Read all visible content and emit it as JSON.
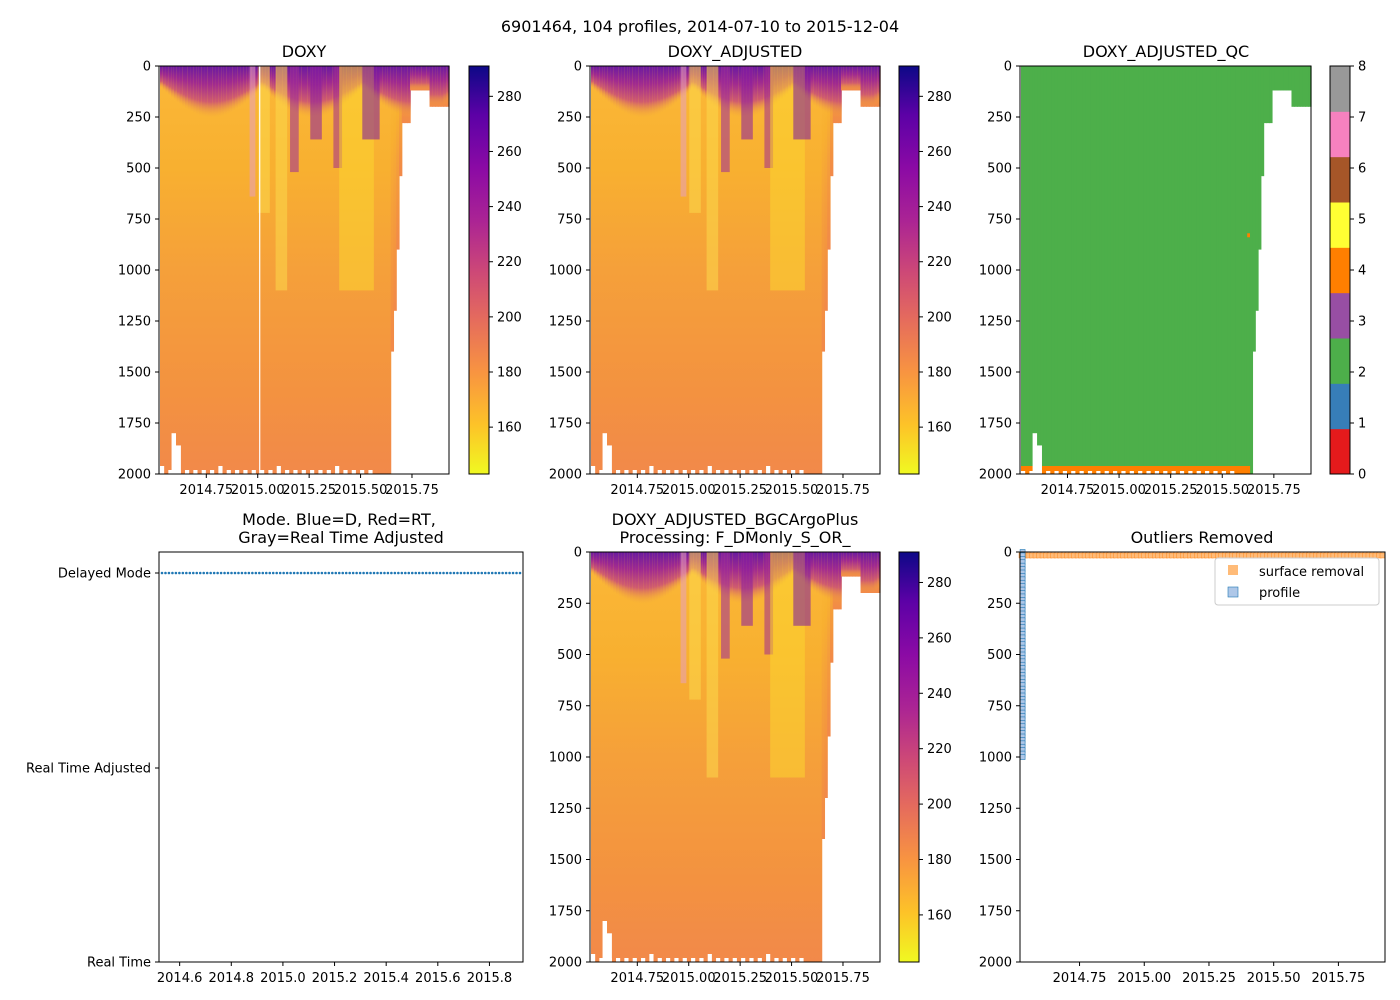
{
  "figure_title": "6901464, 104 profiles, 2014-07-10 to 2015-12-04",
  "colors": {
    "qc_colormap": [
      "#e41a1c",
      "#377eb8",
      "#4daf4a",
      "#984ea3",
      "#ff7f00",
      "#ffff33",
      "#a65628",
      "#f781bf",
      "#999999"
    ],
    "qc_good": "#4daf4a",
    "qc_probably_good": "#ff7f00",
    "mode_delayed": "#1f77b4",
    "outlier_surface": "#ffbb78",
    "outlier_profile": "#aec7e8"
  },
  "chart_data": [
    {
      "id": "doxy",
      "type": "heatmap",
      "title": "DOXY",
      "ylim": [
        2000,
        0
      ],
      "y_ticks": [
        "0",
        "250",
        "500",
        "750",
        "1000",
        "1250",
        "1500",
        "1750",
        "2000"
      ],
      "x_ticks": [
        "2014.75",
        "2015.00",
        "2015.25",
        "2015.50",
        "2015.75"
      ],
      "colorbar_ticks": [
        "160",
        "180",
        "200",
        "220",
        "240",
        "260",
        "280"
      ],
      "colormap": "plasma_r",
      "value_range": [
        143,
        291
      ]
    },
    {
      "id": "doxy_adjusted",
      "type": "heatmap",
      "title": "DOXY_ADJUSTED",
      "ylim": [
        2000,
        0
      ],
      "y_ticks": [
        "0",
        "250",
        "500",
        "750",
        "1000",
        "1250",
        "1500",
        "1750",
        "2000"
      ],
      "x_ticks": [
        "2014.75",
        "2015.00",
        "2015.25",
        "2015.50",
        "2015.75"
      ],
      "colorbar_ticks": [
        "160",
        "180",
        "200",
        "220",
        "240",
        "260",
        "280"
      ],
      "colormap": "plasma_r",
      "value_range": [
        143,
        291
      ]
    },
    {
      "id": "doxy_adjusted_qc",
      "type": "heatmap",
      "title": "DOXY_ADJUSTED_QC",
      "ylim": [
        2000,
        0
      ],
      "y_ticks": [
        "0",
        "250",
        "500",
        "750",
        "1000",
        "1250",
        "1500",
        "1750",
        "2000"
      ],
      "x_ticks": [
        "2014.75",
        "2015.00",
        "2015.25",
        "2015.50",
        "2015.75"
      ],
      "colorbar_ticks": [
        "0",
        "1",
        "2",
        "3",
        "4",
        "5",
        "6",
        "7",
        "8"
      ],
      "dominant_flag": 2,
      "bottom_flag": 4
    },
    {
      "id": "mode",
      "type": "scatter",
      "title_line1": "Mode. Blue=D, Red=RT,",
      "title_line2": "Gray=Real Time Adjusted",
      "y_ticks": [
        "Delayed Mode",
        "Real Time Adjusted",
        "Real Time"
      ],
      "x_ticks": [
        "2014.6",
        "2014.8",
        "2015.0",
        "2015.2",
        "2015.4",
        "2015.6",
        "2015.8"
      ],
      "xlim": [
        2014.52,
        2015.93
      ],
      "series": [
        {
          "name": "Delayed Mode",
          "x_range": [
            2014.52,
            2015.93
          ],
          "y": "Delayed Mode"
        }
      ]
    },
    {
      "id": "doxy_bgc",
      "type": "heatmap",
      "title_line1": "DOXY_ADJUSTED_BGCArgoPlus",
      "title_line2": "Processing: F_DMonly_S_OR_",
      "ylim": [
        2000,
        0
      ],
      "y_ticks": [
        "0",
        "250",
        "500",
        "750",
        "1000",
        "1250",
        "1500",
        "1750",
        "2000"
      ],
      "x_ticks": [
        "2014.75",
        "2015.00",
        "2015.25",
        "2015.50",
        "2015.75"
      ],
      "colorbar_ticks": [
        "160",
        "180",
        "200",
        "220",
        "240",
        "260",
        "280"
      ],
      "colormap": "plasma_r",
      "value_range": [
        143,
        291
      ]
    },
    {
      "id": "outliers",
      "type": "scatter",
      "title": "Outliers Removed",
      "ylim": [
        2000,
        0
      ],
      "xlim": [
        2014.52,
        2015.93
      ],
      "y_ticks": [
        "0",
        "250",
        "500",
        "750",
        "1000",
        "1250",
        "1500",
        "1750",
        "2000"
      ],
      "x_ticks": [
        "2014.75",
        "2015.00",
        "2015.25",
        "2015.50",
        "2015.75"
      ],
      "legend": [
        "surface removal",
        "profile"
      ],
      "legend_location": "top-right",
      "series": [
        {
          "name": "surface removal",
          "x_range": [
            2014.52,
            2015.93
          ],
          "depth_range": [
            0,
            20
          ]
        },
        {
          "name": "profile",
          "x": 2014.53,
          "depth_range": [
            0,
            1000
          ]
        }
      ]
    }
  ]
}
